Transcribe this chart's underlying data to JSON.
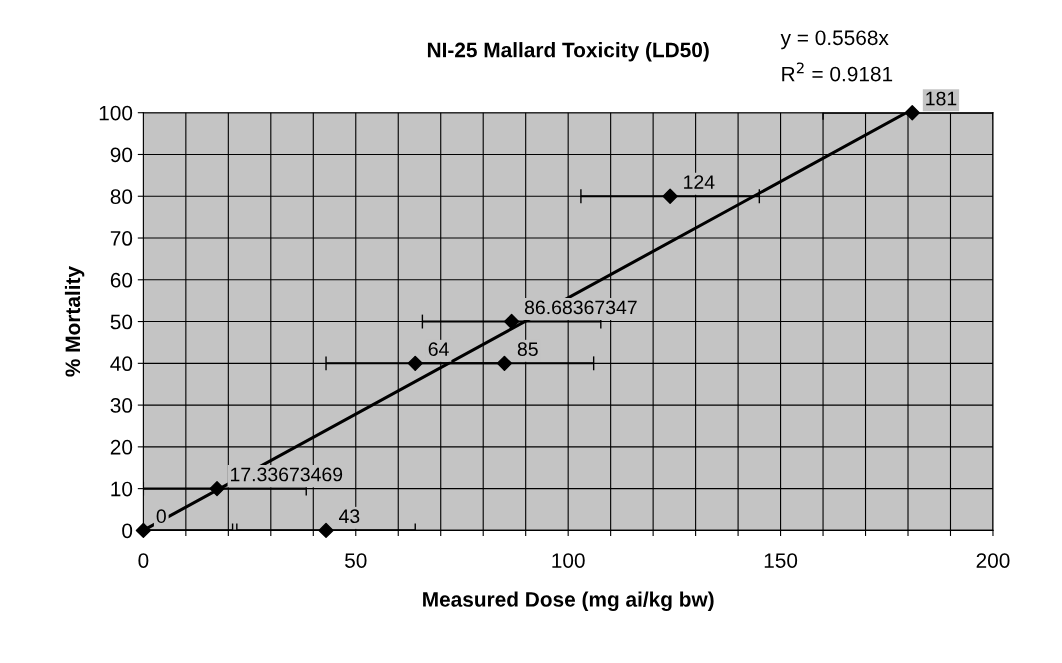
{
  "chart_data": {
    "type": "scatter",
    "title": "NI-25 Mallard Toxicity (LD50)",
    "xlabel": "Measured Dose (mg ai/kg bw)",
    "ylabel": "% Mortality",
    "annotations": [
      "y = 0.5568x",
      "R$^{2}$ = 0.9181",
      {
        "text": "0",
        "x": 0,
        "y": 0
      },
      {
        "text": "43",
        "x": 43,
        "y": 0
      },
      {
        "text": "17.33673469",
        "x": 17.33673469,
        "y": 10
      },
      {
        "text": "64",
        "x": 64,
        "y": 40
      },
      {
        "text": "85",
        "x": 85,
        "y": 40
      },
      {
        "text": "86.68367347",
        "x": 86.68367347,
        "y": 50
      },
      {
        "text": "124",
        "x": 124,
        "y": 80
      },
      {
        "text": "181",
        "x": 181,
        "y": 100
      }
    ],
    "xlim": [
      0,
      200
    ],
    "ylim": [
      0,
      100
    ],
    "xticks": [
      0,
      {
        "value": 10,
        "label": null
      },
      {
        "value": 20,
        "label": null
      },
      {
        "value": 30,
        "label": null
      },
      {
        "value": 40,
        "label": null
      },
      50,
      {
        "value": 60,
        "label": null
      },
      {
        "value": 70,
        "label": null
      },
      {
        "value": 80,
        "label": null
      },
      {
        "value": 90,
        "label": null
      },
      100,
      {
        "value": 110,
        "label": null
      },
      {
        "value": 120,
        "label": null
      },
      {
        "value": 130,
        "label": null
      },
      {
        "value": 140,
        "label": null
      },
      150,
      {
        "value": 160,
        "label": null
      },
      {
        "value": 170,
        "label": null
      },
      {
        "value": 180,
        "label": null
      },
      {
        "value": 190,
        "label": null
      },
      200
    ],
    "yticks": [
      0,
      10,
      20,
      30,
      40,
      50,
      60,
      70,
      80,
      90,
      100
    ],
    "grid": true,
    "series": [
      {
        "color": "#000000",
        "marker": "diamond",
        "x": [
          0,
          43,
          17.33673469,
          64,
          85,
          86.68367347,
          124,
          181
        ],
        "values": [
          0,
          0,
          10,
          40,
          40,
          50,
          80,
          100
        ],
        "xerrors": [
          [
            0,
            21
          ],
          21,
          [
            0,
            38.34
          ],
          21,
          21,
          21,
          21,
          [
            160,
            200
          ]
        ]
      },
      {
        "type": "line",
        "color": "#000000",
        "x": [
          0,
          179.6
        ],
        "values": [
          0,
          100
        ]
      }
    ]
  }
}
